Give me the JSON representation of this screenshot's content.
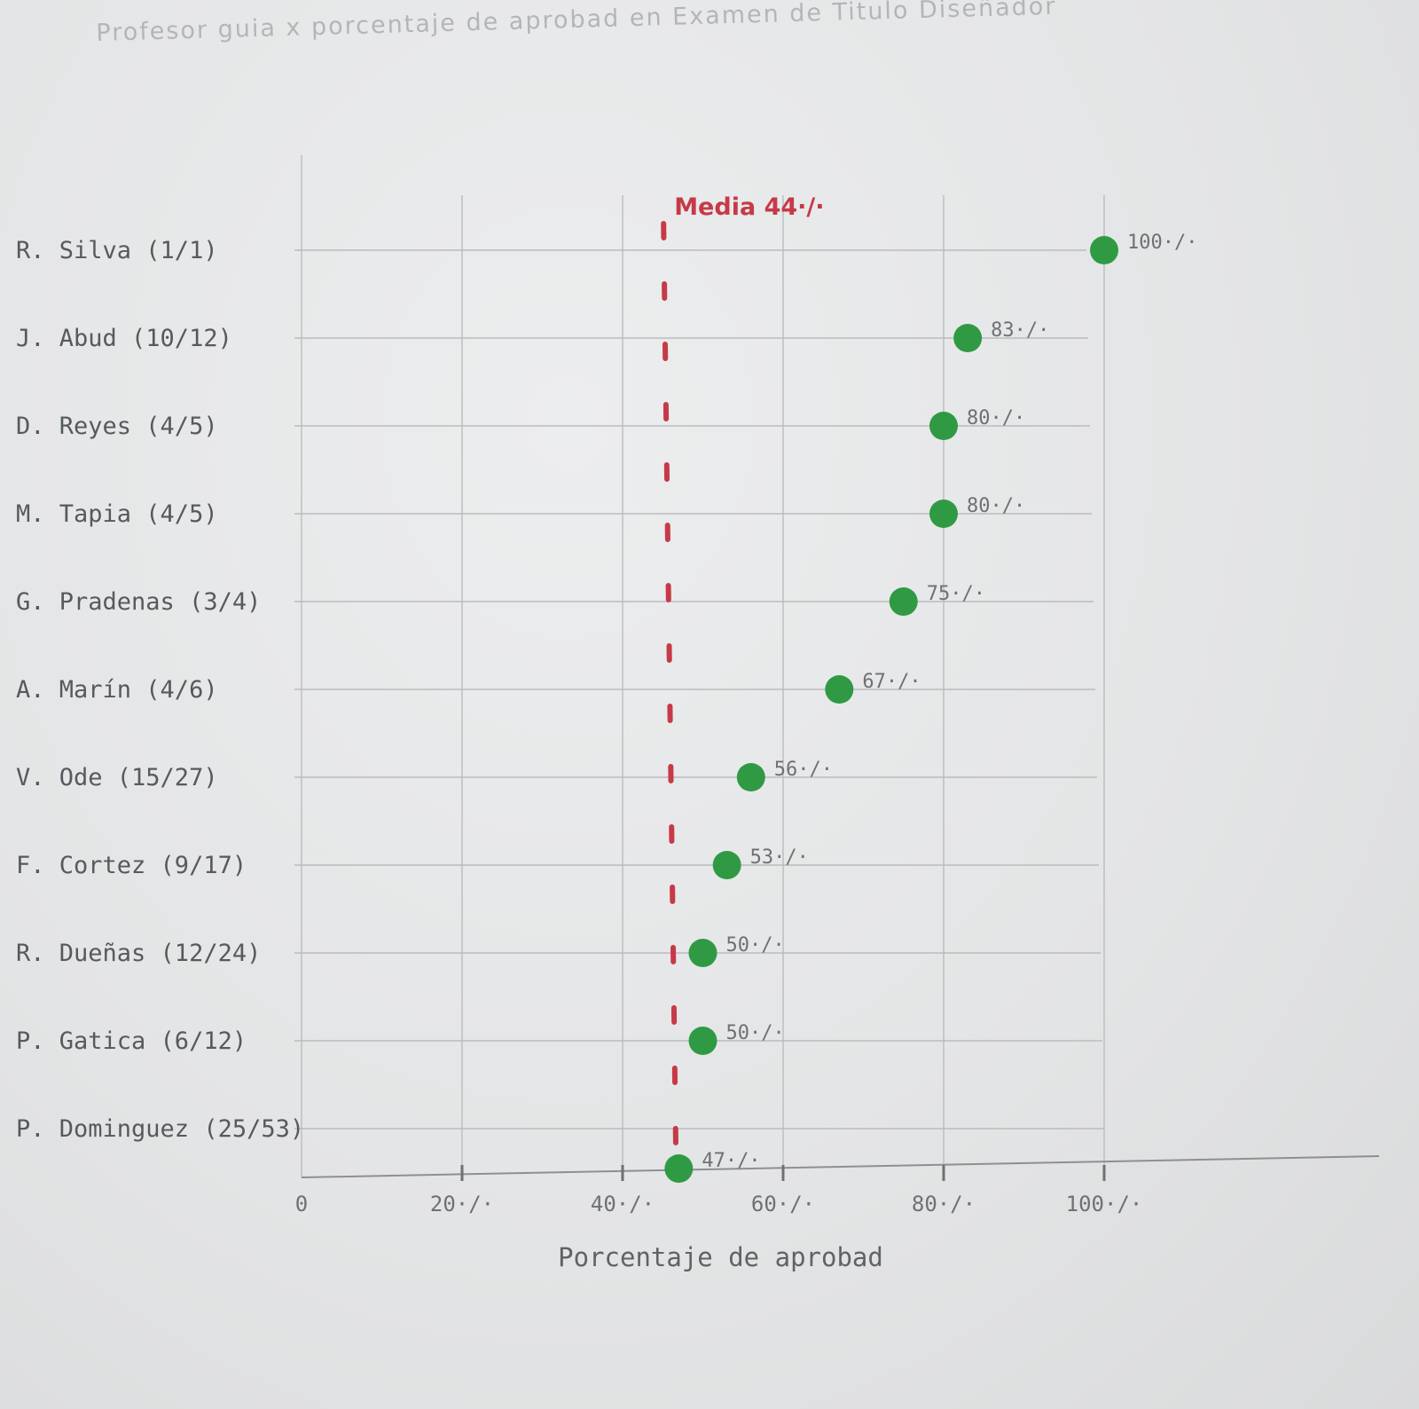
{
  "title": "Profesor guia x porcentaje de aprobad en Examen de Titulo Diseñador",
  "chart_data": {
    "type": "scatter",
    "title": "Profesor guia x porcentaje de aprobad en Examen de Titulo Diseñador",
    "xlabel": "Porcentaje de aprobad",
    "ylabel": "",
    "xlim": [
      0,
      100
    ],
    "x_ticks": [
      {
        "value": 0,
        "label": "0"
      },
      {
        "value": 20,
        "label": "20·/·"
      },
      {
        "value": 40,
        "label": "40·/·"
      },
      {
        "value": 60,
        "label": "60·/·"
      },
      {
        "value": 80,
        "label": "80·/·"
      },
      {
        "value": 100,
        "label": "100·/·"
      }
    ],
    "grid": true,
    "categories": [
      "R. Silva (1/1)",
      "J. Abud (10/12)",
      "D. Reyes (4/5)",
      "M. Tapia (4/5)",
      "G. Pradenas (3/4)",
      "A. Marín (4/6)",
      "V. Ode (15/27)",
      "F. Cortez (9/17)",
      "R. Dueñas (12/24)",
      "P. Gatica (6/12)",
      "P. Dominguez (25/53)"
    ],
    "values": [
      100,
      83,
      80,
      80,
      75,
      67,
      56,
      53,
      50,
      50,
      47
    ],
    "data_labels": [
      "100·/·",
      "83·/·",
      "80·/·",
      "80·/·",
      "75·/·",
      "67·/·",
      "56·/·",
      "53·/·",
      "50·/·",
      "50·/·",
      "47·/·"
    ],
    "point_color": "#2f9a43",
    "mean": {
      "value": 44,
      "label": "Media 44·/·",
      "color": "#c63a48"
    }
  }
}
